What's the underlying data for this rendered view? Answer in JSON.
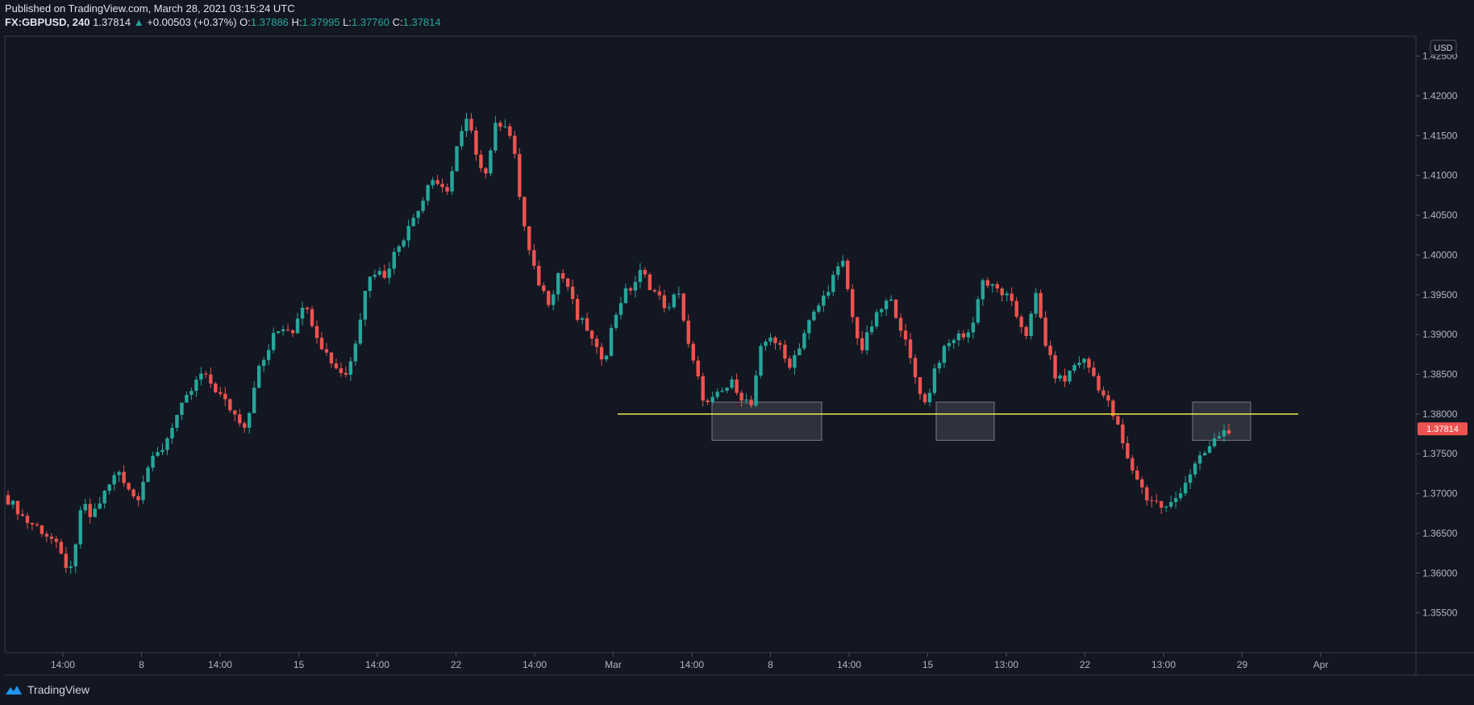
{
  "header": {
    "published": "Published on TradingView.com, March 28, 2021 03:15:24 UTC",
    "symbol": "FX:GBPUSD, 240",
    "last": "1.37814",
    "change": "+0.00503 (+0.37%)",
    "o_label": "O:",
    "o": "1.37886",
    "h_label": "H:",
    "h": "1.37995",
    "l_label": "L:",
    "l": "1.37760",
    "c_label": "C:",
    "c": "1.37814"
  },
  "footer": {
    "brand": "TradingView",
    "icon": "tradingview-logo-icon"
  },
  "colors": {
    "background": "#131722",
    "up": "#26a69a",
    "down": "#ef5350",
    "level": "#f5eb48",
    "axis_text": "#b2b5be"
  },
  "chart_data": {
    "type": "candlestick",
    "title": "FX:GBPUSD, 240",
    "currency_label": "USD",
    "ylim": [
      1.35,
      1.4275
    ],
    "y_ticks": [
      "1.42500",
      "1.42000",
      "1.41500",
      "1.41000",
      "1.40500",
      "1.40000",
      "1.39500",
      "1.39000",
      "1.38500",
      "1.38000",
      "1.37500",
      "1.37000",
      "1.36500",
      "1.36000",
      "1.35500"
    ],
    "x_tick_labels": [
      "14:00",
      "8",
      "14:00",
      "15",
      "14:00",
      "22",
      "14:00",
      "Mar",
      "14:00",
      "8",
      "14:00",
      "15",
      "13:00",
      "22",
      "13:00",
      "29",
      "Apr"
    ],
    "price_label": "1.37814",
    "level_line": 1.38,
    "zones": [
      {
        "y_top": 1.3815,
        "y_bottom": 1.3767
      },
      {
        "y_top": 1.3815,
        "y_bottom": 1.3767
      },
      {
        "y_top": 1.3815,
        "y_bottom": 1.3767
      }
    ],
    "path_closes": [
      1.3692,
      1.368,
      1.3665,
      1.366,
      1.365,
      1.364,
      1.3615,
      1.36,
      1.369,
      1.367,
      1.369,
      1.371,
      1.373,
      1.371,
      1.369,
      1.373,
      1.3745,
      1.376,
      1.379,
      1.381,
      1.383,
      1.385,
      1.384,
      1.3825,
      1.381,
      1.3795,
      1.3785,
      1.385,
      1.387,
      1.39,
      1.391,
      1.3905,
      1.394,
      1.392,
      1.389,
      1.387,
      1.3855,
      1.385,
      1.39,
      1.3965,
      1.398,
      1.3975,
      1.4,
      1.402,
      1.405,
      1.406,
      1.41,
      1.408,
      1.4085,
      1.414,
      1.417,
      1.413,
      1.41,
      1.416,
      1.417,
      1.414,
      1.405,
      1.399,
      1.396,
      1.394,
      1.398,
      1.396,
      1.392,
      1.391,
      1.388,
      1.387,
      1.392,
      1.395,
      1.396,
      1.398,
      1.396,
      1.3945,
      1.393,
      1.396,
      1.389,
      1.385,
      1.381,
      1.382,
      1.383,
      1.384,
      1.382,
      1.381,
      1.388,
      1.39,
      1.3885,
      1.386,
      1.388,
      1.391,
      1.393,
      1.395,
      1.3975,
      1.399,
      1.392,
      1.388,
      1.391,
      1.393,
      1.3945,
      1.392,
      1.388,
      1.384,
      1.381,
      1.386,
      1.388,
      1.3895,
      1.39,
      1.3905,
      1.397,
      1.396,
      1.3955,
      1.3945,
      1.392,
      1.39,
      1.395,
      1.389,
      1.385,
      1.384,
      1.386,
      1.387,
      1.3855,
      1.383,
      1.381,
      1.378,
      1.374,
      1.372,
      1.3695,
      1.369,
      1.368,
      1.369,
      1.371,
      1.373,
      1.3745,
      1.376,
      1.3775,
      1.3781
    ]
  }
}
